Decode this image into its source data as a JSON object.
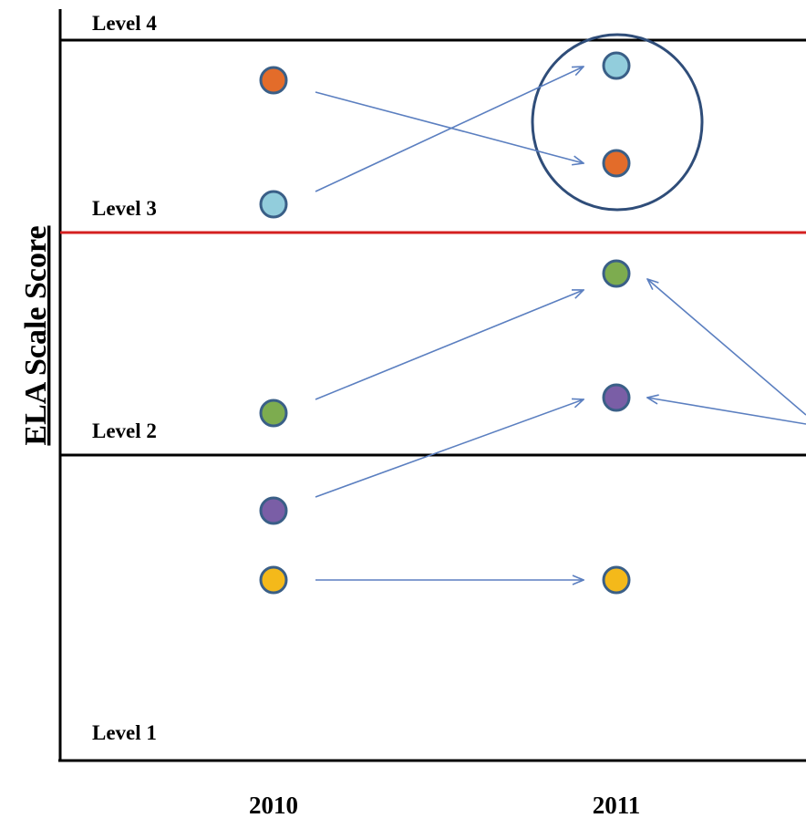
{
  "y_axis_label": "ELA Scale Score",
  "x_axis": {
    "labels": [
      "2010",
      "2011"
    ]
  },
  "levels": [
    {
      "label": "Level 4",
      "line_color": "#000000"
    },
    {
      "label": "Level 3",
      "line_color": "#d42020"
    },
    {
      "label": "Level 2",
      "line_color": "#000000"
    },
    {
      "label": "Level 1",
      "line_color": null
    }
  ],
  "students": [
    {
      "color": "#e36c2a",
      "year_2010_rank": 1,
      "year_2011_rank": 2
    },
    {
      "color": "#92cddc",
      "year_2010_rank": 2,
      "year_2011_rank": 1
    },
    {
      "color": "#7dac4f",
      "year_2010_rank": 3,
      "year_2011_rank": 3
    },
    {
      "color": "#7a5ea6",
      "year_2010_rank": 4,
      "year_2011_rank": 4
    },
    {
      "color": "#f4b91a",
      "year_2010_rank": 5,
      "year_2011_rank": 5
    }
  ],
  "colors": {
    "arrow": "#5b7fc0",
    "marker_outline": "#3a5f87",
    "highlight_ellipse": "#2f4d79",
    "axis": "#000000"
  }
}
